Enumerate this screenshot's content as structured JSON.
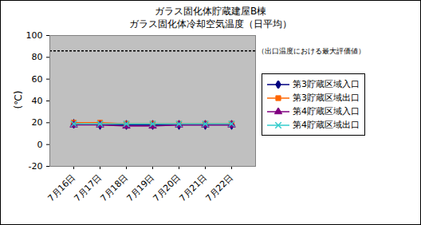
{
  "chart_data": {
    "type": "line",
    "title": "ガラス固化体貯蔵建屋B棟",
    "subtitle": "ガラス固化体冷却空気温度（日平均）",
    "y_label": "(℃)",
    "categories": [
      "7月16日",
      "7月17日",
      "7月18日",
      "7月19日",
      "7月20日",
      "7月21日",
      "7月22日"
    ],
    "series": [
      {
        "name": "第3貯蔵区域入口",
        "color": "#000080",
        "marker": "diamond",
        "values": [
          19,
          18,
          18,
          18,
          18,
          18,
          18
        ]
      },
      {
        "name": "第3貯蔵区域出口",
        "color": "#FF6600",
        "marker": "square",
        "values": [
          20,
          20,
          19,
          19,
          19,
          19,
          19
        ]
      },
      {
        "name": "第4貯蔵区域入口",
        "color": "#800080",
        "marker": "triangle",
        "values": [
          18,
          18,
          17,
          17,
          18,
          18,
          18
        ]
      },
      {
        "name": "第4貯蔵区域出口",
        "color": "#33CCCC",
        "marker": "x",
        "values": [
          19,
          19,
          19,
          19,
          19,
          19,
          19
        ]
      }
    ],
    "reference_line": {
      "label": "（出口温度における最大評価値）",
      "value": 86
    },
    "ylim": [
      -20,
      100
    ],
    "yticks": [
      -20,
      0,
      20,
      40,
      60,
      80,
      100
    ],
    "grid": false,
    "legend": "right"
  }
}
